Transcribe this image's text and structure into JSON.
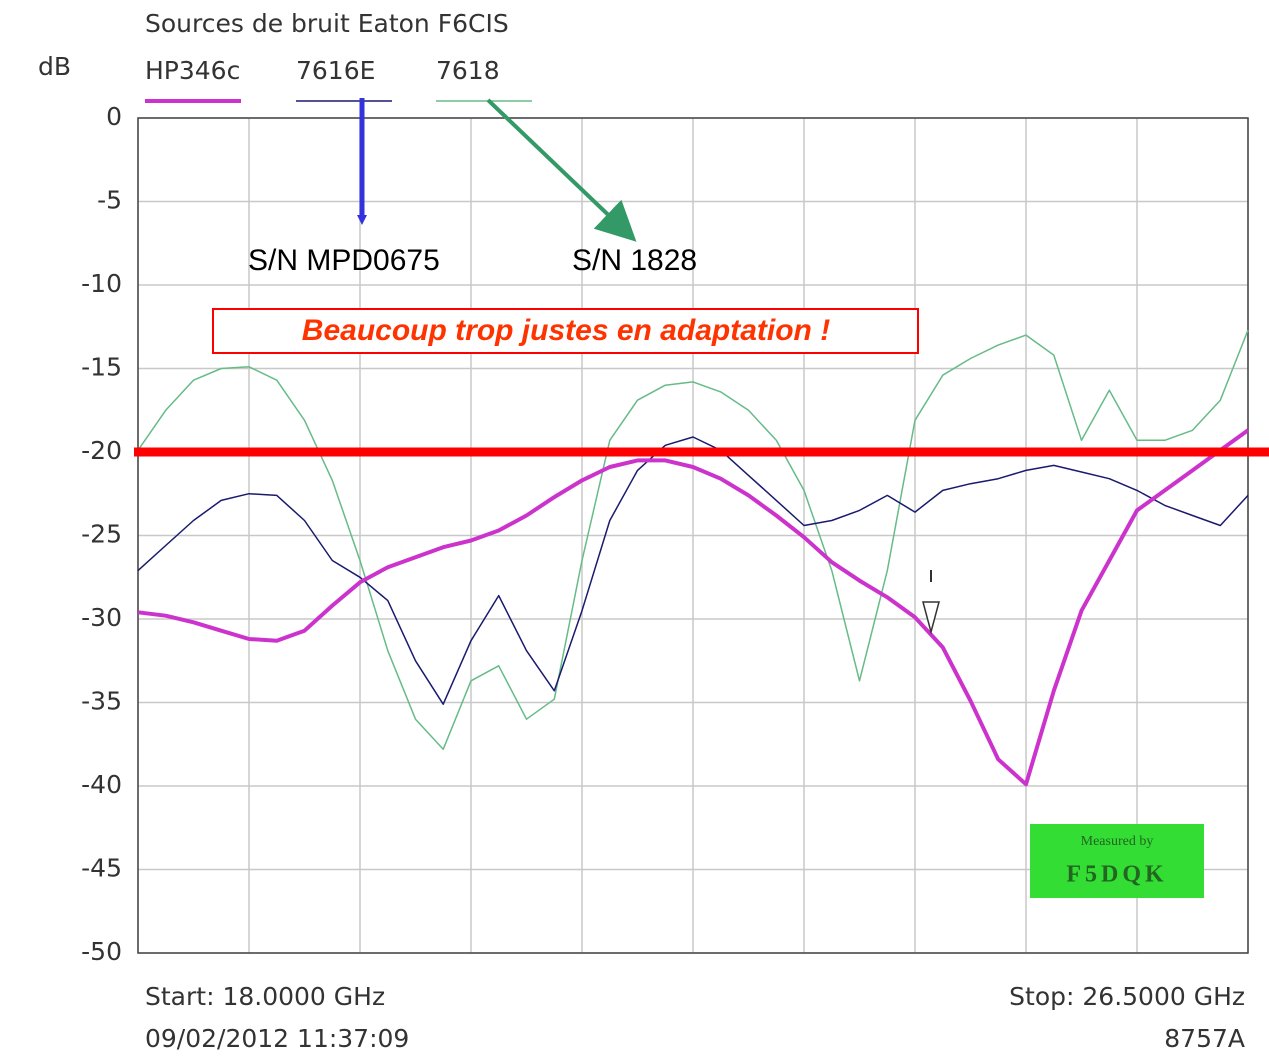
{
  "chart_data": {
    "type": "line",
    "title": "Sources de bruit Eaton F6CIS",
    "y_label": "dB",
    "start_label": "Start: 18.0000 GHz",
    "stop_label": "Stop: 26.5000 GHz",
    "timestamp": "09/02/2012 11:37:09",
    "instrument": "8757A",
    "annotations": [
      "S/N MPD0675",
      "S/N 1828"
    ],
    "warning": "Beaucoup trop justes en adaptation !",
    "stamp": [
      "Measured by",
      "F5DQK"
    ],
    "reference_line": {
      "value": -20,
      "color": "#ff0000"
    },
    "xlim": [
      18,
      26.5
    ],
    "xticks": [
      18,
      18.85,
      19.7,
      20.55,
      21.4,
      22.25,
      23.1,
      23.95,
      24.8,
      25.65,
      26.5
    ],
    "ylim": [
      -50,
      0
    ],
    "yticks": [
      0,
      -5,
      -10,
      -15,
      -20,
      -25,
      -30,
      -35,
      -40,
      -45,
      -50
    ],
    "grid": true,
    "x": [
      18,
      18.2125,
      18.425,
      18.6375,
      18.85,
      19.0625,
      19.275,
      19.4875,
      19.7,
      19.9125,
      20.125,
      20.3375,
      20.55,
      20.7625,
      20.975,
      21.1875,
      21.4,
      21.6125,
      21.825,
      22.0375,
      22.25,
      22.4625,
      22.675,
      22.8875,
      23.1,
      23.3125,
      23.525,
      23.7375,
      23.95,
      24.1625,
      24.375,
      24.5875,
      24.8,
      25.0125,
      25.225,
      25.4375,
      25.65,
      25.8625,
      26.075,
      26.2875,
      26.5
    ],
    "series": [
      {
        "name": "HP346c",
        "color": "#cc33cc",
        "width": 4,
        "values": [
          -29.6,
          -29.8,
          -30.2,
          -30.7,
          -31.2,
          -31.3,
          -30.7,
          -29.2,
          -27.8,
          -26.9,
          -26.3,
          -25.7,
          -25.3,
          -24.7,
          -23.8,
          -22.7,
          -21.7,
          -20.9,
          -20.5,
          -20.5,
          -20.9,
          -21.6,
          -22.6,
          -23.8,
          -25.1,
          -26.6,
          -27.7,
          -28.7,
          -29.9,
          -31.7,
          -34.9,
          -38.4,
          -39.9,
          -34.3,
          -29.5,
          -26.5,
          -23.5,
          -22.3,
          -21.1,
          -19.9,
          -18.7
        ]
      },
      {
        "name": "7616E",
        "color": "#1a1a6e",
        "width": 1.5,
        "values": [
          -27.1,
          -25.6,
          -24.1,
          -22.9,
          -22.5,
          -22.6,
          -24.1,
          -26.5,
          -27.5,
          -28.9,
          -32.5,
          -35.1,
          -31.3,
          -28.6,
          -31.9,
          -34.3,
          -29.5,
          -24.1,
          -21.1,
          -19.6,
          -19.1,
          -19.9,
          -21.4,
          -22.9,
          -24.4,
          -24.1,
          -23.5,
          -22.6,
          -23.6,
          -22.3,
          -21.9,
          -21.6,
          -21.1,
          -20.8,
          -21.2,
          -21.6,
          -22.3,
          -23.2,
          -23.8,
          -24.4,
          -22.6
        ]
      },
      {
        "name": "7618",
        "color": "#66bb88",
        "width": 1.5,
        "values": [
          -19.9,
          -17.5,
          -15.7,
          -15.0,
          -14.9,
          -15.7,
          -18.1,
          -21.7,
          -26.5,
          -31.9,
          -36.0,
          -37.8,
          -33.7,
          -32.8,
          -36.0,
          -34.8,
          -26.5,
          -19.3,
          -16.9,
          -16.0,
          -15.8,
          -16.4,
          -17.5,
          -19.3,
          -22.3,
          -27.1,
          -33.7,
          -27.1,
          -18.1,
          -15.4,
          -14.4,
          -13.6,
          -13.0,
          -14.2,
          -19.3,
          -16.3,
          -19.3,
          -19.3,
          -18.7,
          -16.9,
          -12.7
        ]
      }
    ]
  }
}
